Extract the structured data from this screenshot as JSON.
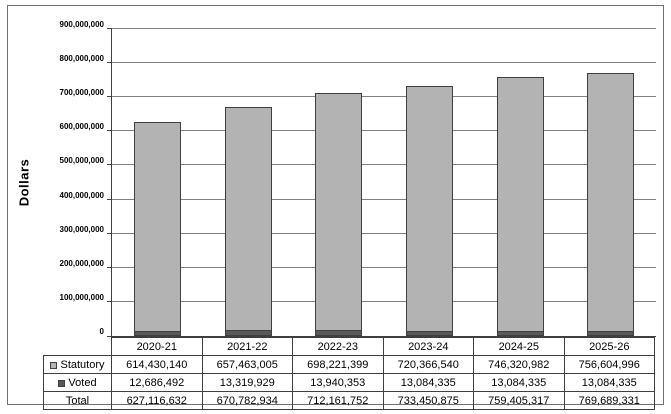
{
  "chart_data": {
    "type": "bar",
    "stacked": true,
    "ylabel": "Dollars",
    "ylim": [
      0,
      900000000
    ],
    "y_tick_step": 100000000,
    "y_tick_labels": [
      "0",
      "100,000,000",
      "200,000,000",
      "300,000,000",
      "400,000,000",
      "500,000,000",
      "600,000,000",
      "700,000,000",
      "800,000,000",
      "900,000,000"
    ],
    "categories": [
      "2020-21",
      "2021-22",
      "2022-23",
      "2023-24",
      "2024-25",
      "2025-26"
    ],
    "series": [
      {
        "name": "Statutory",
        "color": "#b3b3b3",
        "stack_position": "top",
        "values": [
          614430140,
          657463005,
          698221399,
          720366540,
          746320982,
          756604996
        ],
        "display_values": [
          "614,430,140",
          "657,463,005",
          "698,221,399",
          "720,366,540",
          "746,320,982",
          "756,604,996"
        ]
      },
      {
        "name": "Voted",
        "color": "#595959",
        "stack_position": "bottom",
        "values": [
          12686492,
          13319929,
          13940353,
          13084335,
          13084335,
          13084335
        ],
        "display_values": [
          "12,686,492",
          "13,319,929",
          "13,940,353",
          "13,084,335",
          "13,084,335",
          "13,084,335"
        ]
      }
    ],
    "total_row": {
      "name": "Total",
      "values": [
        627116632,
        670782934,
        712161752,
        733450875,
        759405317,
        769689331
      ],
      "display_values": [
        "627,116,632",
        "670,782,934",
        "712,161,752",
        "733,450,875",
        "759,405,317",
        "769,689,331"
      ]
    },
    "grid": true,
    "legend_position": "data-table-left-keys",
    "colors": {
      "gridline": "#808080",
      "axis": "#3f3f3f",
      "bar_border": "#3f3f3f",
      "statutory_fill": "#b3b3b3",
      "voted_fill": "#595959",
      "outer_border": "#707070",
      "text": "#000000"
    }
  }
}
